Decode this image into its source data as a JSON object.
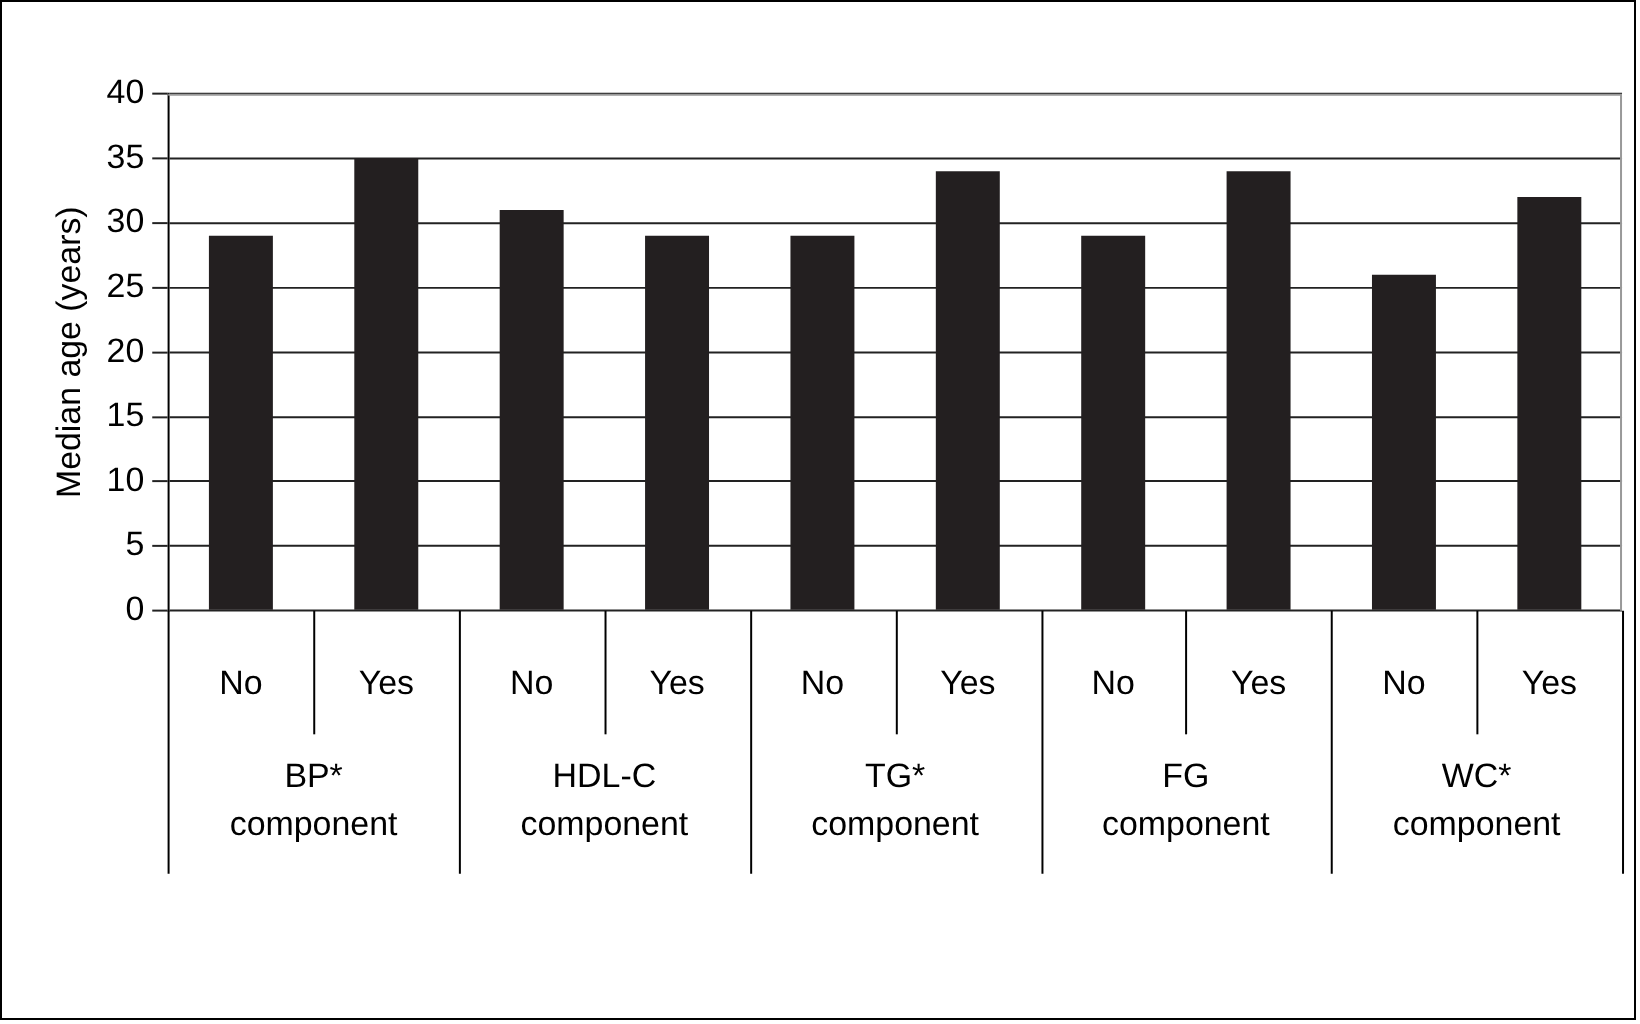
{
  "chart_data": {
    "type": "bar",
    "ylabel": "Median age (years)",
    "categories": [
      "No",
      "Yes",
      "No",
      "Yes",
      "No",
      "Yes",
      "No",
      "Yes",
      "No",
      "Yes"
    ],
    "values": [
      29,
      35,
      31,
      29,
      29,
      34,
      29,
      34,
      26,
      32
    ],
    "color": "#231f20",
    "ylim": [
      0,
      40
    ],
    "yticks": [
      0,
      5,
      10,
      15,
      20,
      25,
      30,
      35,
      40
    ],
    "grid": "y",
    "annotations": [
      "BP* component",
      "HDL-C component",
      "TG* component",
      "FG component",
      "WC* component"
    ]
  }
}
